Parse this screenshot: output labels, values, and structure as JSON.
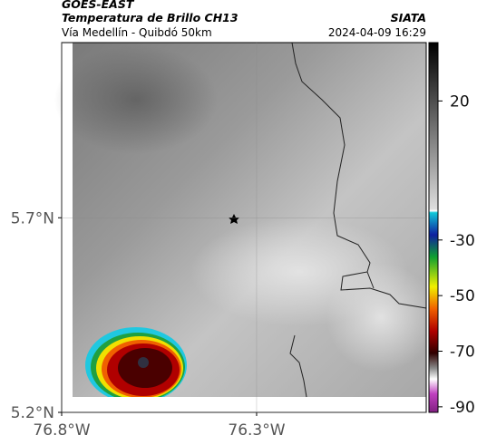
{
  "header": {
    "satellite": "GOES-EAST",
    "product": "Temperatura de Brillo CH13",
    "source": "SIATA",
    "route": "Vía Medellín - Quibdó 50km",
    "timestamp": "2024-04-09 16:29"
  },
  "map": {
    "xlim": [
      -76.8,
      -75.865
    ],
    "ylim": [
      5.2,
      6.15
    ],
    "xticks": [
      {
        "value": -76.8,
        "label": "76.8°W"
      },
      {
        "value": -76.3,
        "label": "76.3°W"
      }
    ],
    "yticks": [
      {
        "value": 5.2,
        "label": "5.2°N"
      },
      {
        "value": 5.7,
        "label": "5.7°N"
      }
    ],
    "grid": true
  },
  "colorbar": {
    "clim": [
      -92,
      41
    ],
    "ticks": [
      20,
      -30,
      -50,
      -70,
      -90
    ]
  }
}
